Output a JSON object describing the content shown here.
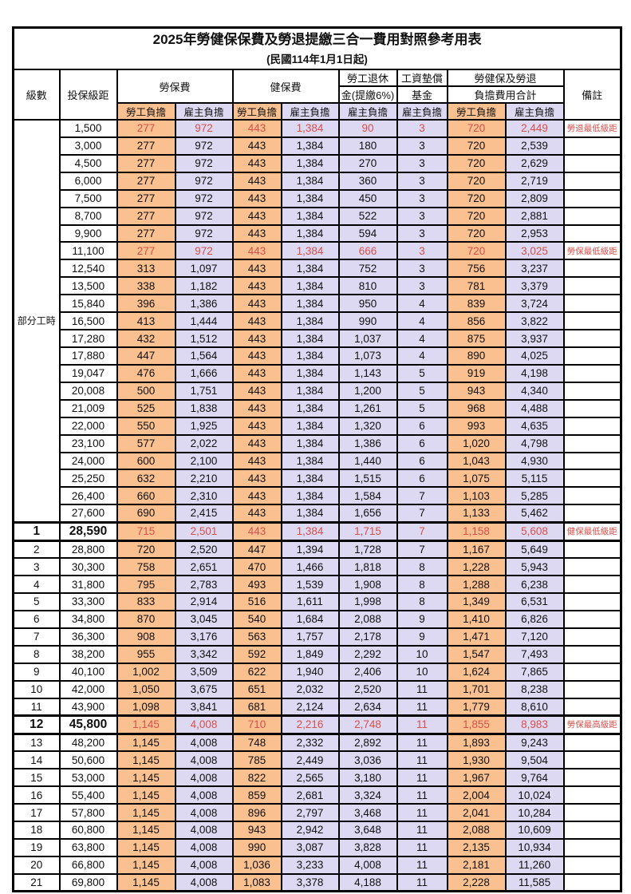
{
  "title": "2025年勞健保保費及勞退提繳三合一費用對照參考用表",
  "subtitle": "(民國114年1月1日起)",
  "colors": {
    "employee_bg": "#FAC090",
    "employer_bg": "#DDD9F2",
    "highlight_red": "#D94F4B",
    "border": "#000000"
  },
  "header": {
    "level": "級數",
    "bracket": "投保級距",
    "labor_fee": "勞保費",
    "health_fee": "健保費",
    "pension_line1": "勞工退休",
    "pension_line2": "金(提繳6%)",
    "wage_fund_line1": "工資墊償",
    "wage_fund_line2": "基金",
    "total_line1": "勞健保及勞退",
    "total_line2": "負擔費用合計",
    "employee": "勞工負擔",
    "employer": "雇主負擔",
    "remark": "備註"
  },
  "part_time_label": "部分工時",
  "rows": [
    {
      "level": "",
      "bracket": "1,500",
      "v": [
        "277",
        "972",
        "443",
        "1,384",
        "90",
        "3",
        "720",
        "2,449"
      ],
      "remark": "勞退最低級距",
      "red": true,
      "bold": false
    },
    {
      "level": "",
      "bracket": "3,000",
      "v": [
        "277",
        "972",
        "443",
        "1,384",
        "180",
        "3",
        "720",
        "2,539"
      ],
      "remark": "",
      "red": false,
      "bold": false
    },
    {
      "level": "",
      "bracket": "4,500",
      "v": [
        "277",
        "972",
        "443",
        "1,384",
        "270",
        "3",
        "720",
        "2,629"
      ],
      "remark": "",
      "red": false,
      "bold": false
    },
    {
      "level": "",
      "bracket": "6,000",
      "v": [
        "277",
        "972",
        "443",
        "1,384",
        "360",
        "3",
        "720",
        "2,719"
      ],
      "remark": "",
      "red": false,
      "bold": false
    },
    {
      "level": "",
      "bracket": "7,500",
      "v": [
        "277",
        "972",
        "443",
        "1,384",
        "450",
        "3",
        "720",
        "2,809"
      ],
      "remark": "",
      "red": false,
      "bold": false
    },
    {
      "level": "",
      "bracket": "8,700",
      "v": [
        "277",
        "972",
        "443",
        "1,384",
        "522",
        "3",
        "720",
        "2,881"
      ],
      "remark": "",
      "red": false,
      "bold": false
    },
    {
      "level": "",
      "bracket": "9,900",
      "v": [
        "277",
        "972",
        "443",
        "1,384",
        "594",
        "3",
        "720",
        "2,953"
      ],
      "remark": "",
      "red": false,
      "bold": false
    },
    {
      "level": "",
      "bracket": "11,100",
      "v": [
        "277",
        "972",
        "443",
        "1,384",
        "666",
        "3",
        "720",
        "3,025"
      ],
      "remark": "勞保最低級距",
      "red": true,
      "bold": false
    },
    {
      "level": "",
      "bracket": "12,540",
      "v": [
        "313",
        "1,097",
        "443",
        "1,384",
        "752",
        "3",
        "756",
        "3,237"
      ],
      "remark": "",
      "red": false,
      "bold": false
    },
    {
      "level": "",
      "bracket": "13,500",
      "v": [
        "338",
        "1,182",
        "443",
        "1,384",
        "810",
        "3",
        "781",
        "3,379"
      ],
      "remark": "",
      "red": false,
      "bold": false
    },
    {
      "level": "",
      "bracket": "15,840",
      "v": [
        "396",
        "1,386",
        "443",
        "1,384",
        "950",
        "4",
        "839",
        "3,724"
      ],
      "remark": "",
      "red": false,
      "bold": false
    },
    {
      "level": "",
      "bracket": "16,500",
      "v": [
        "413",
        "1,444",
        "443",
        "1,384",
        "990",
        "4",
        "856",
        "3,822"
      ],
      "remark": "",
      "red": false,
      "bold": false
    },
    {
      "level": "",
      "bracket": "17,280",
      "v": [
        "432",
        "1,512",
        "443",
        "1,384",
        "1,037",
        "4",
        "875",
        "3,937"
      ],
      "remark": "",
      "red": false,
      "bold": false
    },
    {
      "level": "",
      "bracket": "17,880",
      "v": [
        "447",
        "1,564",
        "443",
        "1,384",
        "1,073",
        "4",
        "890",
        "4,025"
      ],
      "remark": "",
      "red": false,
      "bold": false
    },
    {
      "level": "",
      "bracket": "19,047",
      "v": [
        "476",
        "1,666",
        "443",
        "1,384",
        "1,143",
        "5",
        "919",
        "4,198"
      ],
      "remark": "",
      "red": false,
      "bold": false
    },
    {
      "level": "",
      "bracket": "20,008",
      "v": [
        "500",
        "1,751",
        "443",
        "1,384",
        "1,200",
        "5",
        "943",
        "4,340"
      ],
      "remark": "",
      "red": false,
      "bold": false
    },
    {
      "level": "",
      "bracket": "21,009",
      "v": [
        "525",
        "1,838",
        "443",
        "1,384",
        "1,261",
        "5",
        "968",
        "4,488"
      ],
      "remark": "",
      "red": false,
      "bold": false
    },
    {
      "level": "",
      "bracket": "22,000",
      "v": [
        "550",
        "1,925",
        "443",
        "1,384",
        "1,320",
        "6",
        "993",
        "4,635"
      ],
      "remark": "",
      "red": false,
      "bold": false
    },
    {
      "level": "",
      "bracket": "23,100",
      "v": [
        "577",
        "2,022",
        "443",
        "1,384",
        "1,386",
        "6",
        "1,020",
        "4,798"
      ],
      "remark": "",
      "red": false,
      "bold": false
    },
    {
      "level": "",
      "bracket": "24,000",
      "v": [
        "600",
        "2,100",
        "443",
        "1,384",
        "1,440",
        "6",
        "1,043",
        "4,930"
      ],
      "remark": "",
      "red": false,
      "bold": false
    },
    {
      "level": "",
      "bracket": "25,250",
      "v": [
        "632",
        "2,210",
        "443",
        "1,384",
        "1,515",
        "6",
        "1,075",
        "5,115"
      ],
      "remark": "",
      "red": false,
      "bold": false
    },
    {
      "level": "",
      "bracket": "26,400",
      "v": [
        "660",
        "2,310",
        "443",
        "1,384",
        "1,584",
        "7",
        "1,103",
        "5,285"
      ],
      "remark": "",
      "red": false,
      "bold": false
    },
    {
      "level": "",
      "bracket": "27,600",
      "v": [
        "690",
        "2,415",
        "443",
        "1,384",
        "1,656",
        "7",
        "1,133",
        "5,462"
      ],
      "remark": "",
      "red": false,
      "bold": false
    },
    {
      "level": "1",
      "bracket": "28,590",
      "v": [
        "715",
        "2,501",
        "443",
        "1,384",
        "1,715",
        "7",
        "1,158",
        "5,608"
      ],
      "remark": "健保最低級距",
      "red": true,
      "bold": true
    },
    {
      "level": "2",
      "bracket": "28,800",
      "v": [
        "720",
        "2,520",
        "447",
        "1,394",
        "1,728",
        "7",
        "1,167",
        "5,649"
      ],
      "remark": "",
      "red": false,
      "bold": false
    },
    {
      "level": "3",
      "bracket": "30,300",
      "v": [
        "758",
        "2,651",
        "470",
        "1,466",
        "1,818",
        "8",
        "1,228",
        "5,943"
      ],
      "remark": "",
      "red": false,
      "bold": false
    },
    {
      "level": "4",
      "bracket": "31,800",
      "v": [
        "795",
        "2,783",
        "493",
        "1,539",
        "1,908",
        "8",
        "1,288",
        "6,238"
      ],
      "remark": "",
      "red": false,
      "bold": false
    },
    {
      "level": "5",
      "bracket": "33,300",
      "v": [
        "833",
        "2,914",
        "516",
        "1,611",
        "1,998",
        "8",
        "1,349",
        "6,531"
      ],
      "remark": "",
      "red": false,
      "bold": false
    },
    {
      "level": "6",
      "bracket": "34,800",
      "v": [
        "870",
        "3,045",
        "540",
        "1,684",
        "2,088",
        "9",
        "1,410",
        "6,826"
      ],
      "remark": "",
      "red": false,
      "bold": false
    },
    {
      "level": "7",
      "bracket": "36,300",
      "v": [
        "908",
        "3,176",
        "563",
        "1,757",
        "2,178",
        "9",
        "1,471",
        "7,120"
      ],
      "remark": "",
      "red": false,
      "bold": false
    },
    {
      "level": "8",
      "bracket": "38,200",
      "v": [
        "955",
        "3,342",
        "592",
        "1,849",
        "2,292",
        "10",
        "1,547",
        "7,493"
      ],
      "remark": "",
      "red": false,
      "bold": false
    },
    {
      "level": "9",
      "bracket": "40,100",
      "v": [
        "1,002",
        "3,509",
        "622",
        "1,940",
        "2,406",
        "10",
        "1,624",
        "7,865"
      ],
      "remark": "",
      "red": false,
      "bold": false
    },
    {
      "level": "10",
      "bracket": "42,000",
      "v": [
        "1,050",
        "3,675",
        "651",
        "2,032",
        "2,520",
        "11",
        "1,701",
        "8,238"
      ],
      "remark": "",
      "red": false,
      "bold": false
    },
    {
      "level": "11",
      "bracket": "43,900",
      "v": [
        "1,098",
        "3,841",
        "681",
        "2,124",
        "2,634",
        "11",
        "1,779",
        "8,610"
      ],
      "remark": "",
      "red": false,
      "bold": false
    },
    {
      "level": "12",
      "bracket": "45,800",
      "v": [
        "1,145",
        "4,008",
        "710",
        "2,216",
        "2,748",
        "11",
        "1,855",
        "8,983"
      ],
      "remark": "勞保最高級距",
      "red": true,
      "bold": true
    },
    {
      "level": "13",
      "bracket": "48,200",
      "v": [
        "1,145",
        "4,008",
        "748",
        "2,332",
        "2,892",
        "11",
        "1,893",
        "9,243"
      ],
      "remark": "",
      "red": false,
      "bold": false
    },
    {
      "level": "14",
      "bracket": "50,600",
      "v": [
        "1,145",
        "4,008",
        "785",
        "2,449",
        "3,036",
        "11",
        "1,930",
        "9,504"
      ],
      "remark": "",
      "red": false,
      "bold": false
    },
    {
      "level": "15",
      "bracket": "53,000",
      "v": [
        "1,145",
        "4,008",
        "822",
        "2,565",
        "3,180",
        "11",
        "1,967",
        "9,764"
      ],
      "remark": "",
      "red": false,
      "bold": false
    },
    {
      "level": "16",
      "bracket": "55,400",
      "v": [
        "1,145",
        "4,008",
        "859",
        "2,681",
        "3,324",
        "11",
        "2,004",
        "10,024"
      ],
      "remark": "",
      "red": false,
      "bold": false
    },
    {
      "level": "17",
      "bracket": "57,800",
      "v": [
        "1,145",
        "4,008",
        "896",
        "2,797",
        "3,468",
        "11",
        "2,041",
        "10,284"
      ],
      "remark": "",
      "red": false,
      "bold": false
    },
    {
      "level": "18",
      "bracket": "60,800",
      "v": [
        "1,145",
        "4,008",
        "943",
        "2,942",
        "3,648",
        "11",
        "2,088",
        "10,609"
      ],
      "remark": "",
      "red": false,
      "bold": false
    },
    {
      "level": "19",
      "bracket": "63,800",
      "v": [
        "1,145",
        "4,008",
        "990",
        "3,087",
        "3,828",
        "11",
        "2,135",
        "10,934"
      ],
      "remark": "",
      "red": false,
      "bold": false
    },
    {
      "level": "20",
      "bracket": "66,800",
      "v": [
        "1,145",
        "4,008",
        "1,036",
        "3,233",
        "4,008",
        "11",
        "2,181",
        "11,260"
      ],
      "remark": "",
      "red": false,
      "bold": false
    },
    {
      "level": "21",
      "bracket": "69,800",
      "v": [
        "1,145",
        "4,008",
        "1,083",
        "3,378",
        "4,188",
        "11",
        "2,228",
        "11,585"
      ],
      "remark": "",
      "red": false,
      "bold": false
    }
  ]
}
